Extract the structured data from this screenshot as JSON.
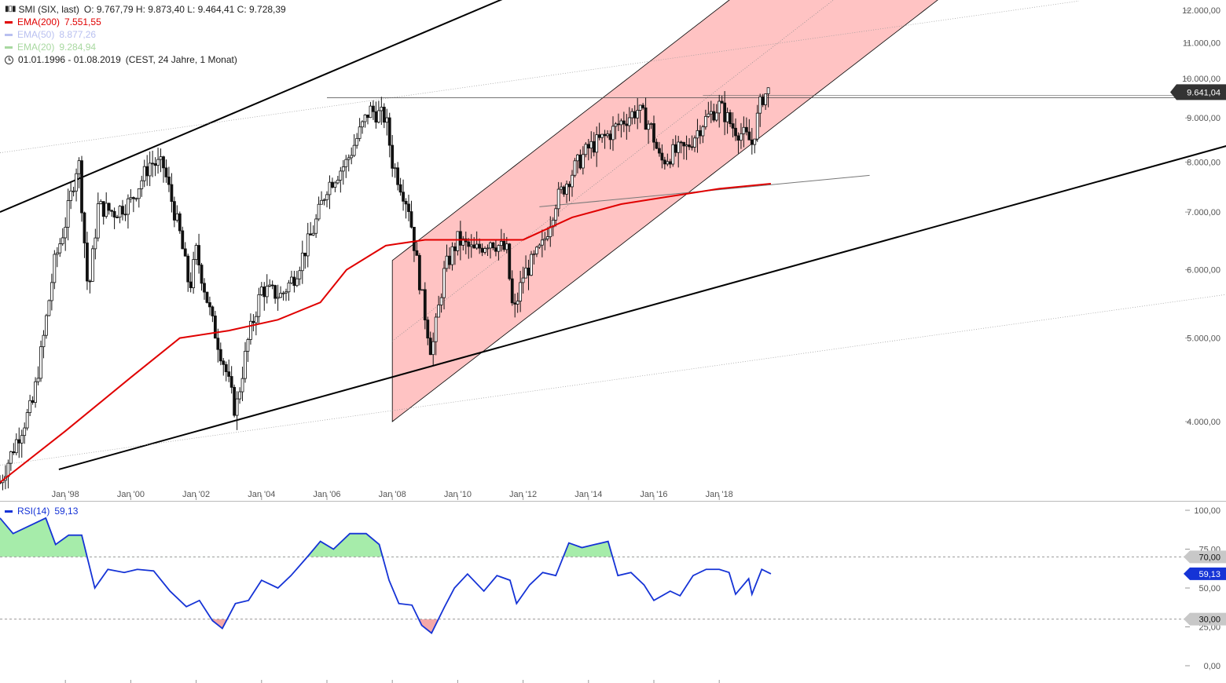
{
  "header": {
    "instrument": "SMI (SIX, last)",
    "ohlc": "O: 9.767,79   H: 9.873,40   L: 9.464,41   C: 9.728,39",
    "indicators": [
      {
        "label": "EMA(200)",
        "value": "7.551,55",
        "color": "#e00000"
      },
      {
        "label": "EMA(50)",
        "value": "8.877,26",
        "color": "#b9c0f0"
      },
      {
        "label": "EMA(20)",
        "value": "9.284,94",
        "color": "#a8d8a0"
      }
    ],
    "range": "01.01.1996 - 01.08.2019",
    "range_detail": "(CEST, 24 Jahre, 1 Monat)"
  },
  "price_axis": {
    "ticks": [
      "12.000,00",
      "11.000,00",
      "10.000,00",
      "9.000,00",
      "8.000,00",
      "7.000,00",
      "6.000,00",
      "5.000,00",
      "4.000,00"
    ],
    "tick_values": [
      12000,
      11000,
      10000,
      9000,
      8000,
      7000,
      6000,
      5000,
      4000
    ],
    "last_price_label": "9.641,04",
    "last_price": 9641.04,
    "scale": "log"
  },
  "time_axis": {
    "labels": [
      "Jan '98",
      "Jan '00",
      "Jan '02",
      "Jan '04",
      "Jan '06",
      "Jan '08",
      "Jan '10",
      "Jan '12",
      "Jan '14",
      "Jan '16",
      "Jan '18"
    ]
  },
  "rsi": {
    "label": "RSI(14)",
    "value": "59,13",
    "value_num": 59.13,
    "axis_ticks": [
      "100,00",
      "75,00",
      "50,00",
      "25,00",
      "0,00"
    ],
    "tick_values": [
      100,
      75,
      50,
      25,
      0
    ],
    "upper_label": "70,00",
    "lower_label": "30,00",
    "upper": 70,
    "lower": 30
  },
  "colors": {
    "candles": "#111111",
    "ema200": "#e00000",
    "channel_fill": "#ffc0c0",
    "rsi_line": "#1533d6",
    "rsi_overbought_fill": "#a6ecaa",
    "rsi_oversold_fill": "#f5a8a8",
    "trend": "#000000"
  },
  "chart_data": {
    "type": "line",
    "title": "SMI (SIX, last)",
    "frequency": "monthly",
    "close": [
      [
        1996.0,
        3400
      ],
      [
        1996.5,
        3800
      ],
      [
        1997.0,
        4200
      ],
      [
        1997.33,
        5000
      ],
      [
        1997.66,
        6100
      ],
      [
        1998.0,
        6800
      ],
      [
        1998.4,
        8100
      ],
      [
        1998.7,
        5600
      ],
      [
        1999.0,
        7100
      ],
      [
        1999.5,
        7000
      ],
      [
        2000.0,
        7200
      ],
      [
        2000.6,
        8000
      ],
      [
        2001.0,
        7900
      ],
      [
        2001.5,
        6600
      ],
      [
        2001.8,
        5700
      ],
      [
        2002.0,
        6300
      ],
      [
        2002.5,
        5200
      ],
      [
        2002.9,
        4600
      ],
      [
        2003.2,
        4100
      ],
      [
        2003.6,
        5000
      ],
      [
        2004.0,
        5700
      ],
      [
        2004.6,
        5600
      ],
      [
        2005.0,
        5900
      ],
      [
        2005.6,
        6700
      ],
      [
        2006.0,
        7500
      ],
      [
        2006.6,
        8000
      ],
      [
        2007.3,
        9200
      ],
      [
        2007.8,
        9000
      ],
      [
        2008.0,
        8000
      ],
      [
        2008.5,
        7100
      ],
      [
        2008.9,
        5600
      ],
      [
        2009.2,
        4800
      ],
      [
        2009.6,
        6000
      ],
      [
        2010.0,
        6500
      ],
      [
        2010.5,
        6300
      ],
      [
        2011.0,
        6500
      ],
      [
        2011.5,
        6300
      ],
      [
        2011.7,
        5300
      ],
      [
        2012.0,
        5900
      ],
      [
        2012.6,
        6400
      ],
      [
        2013.0,
        7200
      ],
      [
        2013.6,
        7900
      ],
      [
        2014.0,
        8300
      ],
      [
        2014.6,
        8600
      ],
      [
        2015.0,
        8900
      ],
      [
        2015.5,
        9200
      ],
      [
        2015.9,
        8800
      ],
      [
        2016.2,
        8000
      ],
      [
        2016.6,
        8200
      ],
      [
        2017.0,
        8300
      ],
      [
        2017.5,
        8900
      ],
      [
        2018.0,
        9300
      ],
      [
        2018.4,
        8800
      ],
      [
        2018.9,
        8500
      ],
      [
        2019.0,
        8400
      ],
      [
        2019.3,
        9500
      ],
      [
        2019.58,
        9728.39
      ]
    ],
    "ema200": [
      [
        1996.0,
        3400
      ],
      [
        1998.0,
        3900
      ],
      [
        2000.0,
        4500
      ],
      [
        2001.5,
        5000
      ],
      [
        2003.0,
        5100
      ],
      [
        2004.5,
        5250
      ],
      [
        2005.8,
        5500
      ],
      [
        2006.6,
        6000
      ],
      [
        2007.8,
        6400
      ],
      [
        2009.0,
        6500
      ],
      [
        2010.5,
        6500
      ],
      [
        2012.0,
        6500
      ],
      [
        2013.5,
        6900
      ],
      [
        2015.0,
        7150
      ],
      [
        2016.5,
        7300
      ],
      [
        2018.0,
        7450
      ],
      [
        2019.58,
        7551.55
      ]
    ],
    "resistance_level": 9500,
    "ylim": [
      3500,
      12500
    ],
    "xlim": [
      1996.0,
      2033.5
    ]
  },
  "rsi_data": {
    "series": [
      [
        1996.0,
        95
      ],
      [
        1996.4,
        85
      ],
      [
        1997.0,
        91
      ],
      [
        1997.4,
        95
      ],
      [
        1997.7,
        78
      ],
      [
        1998.1,
        84
      ],
      [
        1998.5,
        84
      ],
      [
        1998.9,
        50
      ],
      [
        1999.3,
        62
      ],
      [
        1999.8,
        60
      ],
      [
        2000.2,
        62
      ],
      [
        2000.7,
        61
      ],
      [
        2001.2,
        48
      ],
      [
        2001.7,
        38
      ],
      [
        2002.1,
        42
      ],
      [
        2002.5,
        29
      ],
      [
        2002.8,
        24
      ],
      [
        2003.2,
        40
      ],
      [
        2003.6,
        42
      ],
      [
        2004.0,
        55
      ],
      [
        2004.5,
        50
      ],
      [
        2004.9,
        58
      ],
      [
        2005.4,
        70
      ],
      [
        2005.8,
        80
      ],
      [
        2006.2,
        75
      ],
      [
        2006.7,
        85
      ],
      [
        2007.2,
        85
      ],
      [
        2007.6,
        78
      ],
      [
        2007.9,
        55
      ],
      [
        2008.2,
        40
      ],
      [
        2008.6,
        39
      ],
      [
        2008.9,
        26
      ],
      [
        2009.2,
        21
      ],
      [
        2009.6,
        38
      ],
      [
        2009.9,
        50
      ],
      [
        2010.3,
        59
      ],
      [
        2010.8,
        48
      ],
      [
        2011.2,
        58
      ],
      [
        2011.6,
        55
      ],
      [
        2011.8,
        40
      ],
      [
        2012.2,
        52
      ],
      [
        2012.6,
        60
      ],
      [
        2013.0,
        58
      ],
      [
        2013.4,
        79
      ],
      [
        2013.8,
        76
      ],
      [
        2014.2,
        78
      ],
      [
        2014.6,
        80
      ],
      [
        2014.9,
        58
      ],
      [
        2015.3,
        60
      ],
      [
        2015.7,
        52
      ],
      [
        2016.0,
        42
      ],
      [
        2016.5,
        48
      ],
      [
        2016.8,
        45
      ],
      [
        2017.2,
        58
      ],
      [
        2017.6,
        62
      ],
      [
        2018.0,
        62
      ],
      [
        2018.3,
        60
      ],
      [
        2018.5,
        46
      ],
      [
        2018.9,
        56
      ],
      [
        2019.0,
        46
      ],
      [
        2019.3,
        62
      ],
      [
        2019.58,
        59.13
      ]
    ],
    "ylim": [
      0,
      100
    ]
  }
}
